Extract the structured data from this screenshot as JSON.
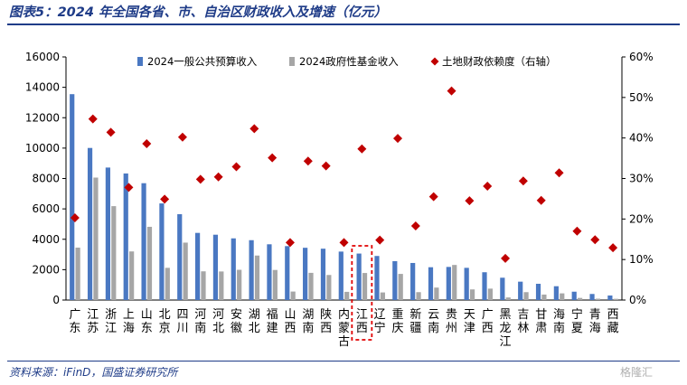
{
  "title": "图表5：2024 年全国各省、市、自治区财政收入及增速（亿元）",
  "source": "资料来源：iFinD，国盛证券研究所",
  "watermark": "格隆汇",
  "colors": {
    "title": "#1f3c88",
    "budget_bar": "#4a78c2",
    "fund_bar": "#a6a6a6",
    "ratio_marker": "#c00000",
    "highlight_box": "#e00000",
    "axis_text": "#000000"
  },
  "chart_data": {
    "type": "bar",
    "categories": [
      "广东",
      "江苏",
      "浙江",
      "上海",
      "山东",
      "北京",
      "四川",
      "河南",
      "河北",
      "安徽",
      "湖北",
      "福建",
      "山西",
      "湖南",
      "陕西",
      "内蒙古",
      "江西",
      "辽宁",
      "重庆",
      "新疆",
      "云南",
      "贵州",
      "天津",
      "广西",
      "黑龙江",
      "吉林",
      "甘肃",
      "海南",
      "宁夏",
      "青海",
      "西藏"
    ],
    "series": [
      {
        "name": "2024一般公共预算收入",
        "axis": "left",
        "kind": "bar",
        "values": [
          13550,
          10010,
          8720,
          8330,
          7690,
          6360,
          5650,
          4420,
          4300,
          4060,
          3940,
          3670,
          3550,
          3440,
          3380,
          3190,
          3060,
          2900,
          2560,
          2440,
          2160,
          2180,
          2120,
          1830,
          1470,
          1210,
          1070,
          910,
          550,
          400,
          300
        ]
      },
      {
        "name": "2024政府性基金收入",
        "axis": "left",
        "kind": "bar",
        "values": [
          3450,
          8060,
          6180,
          3200,
          4820,
          2120,
          3780,
          1890,
          1880,
          1990,
          2930,
          1980,
          560,
          1790,
          1650,
          540,
          1780,
          500,
          1720,
          520,
          820,
          2310,
          700,
          750,
          170,
          520,
          360,
          440,
          140,
          90,
          80
        ]
      },
      {
        "name": "土地财政依赖度（右轴）",
        "axis": "right",
        "kind": "marker",
        "values": [
          20.3,
          44.7,
          41.4,
          27.8,
          38.6,
          24.9,
          40.2,
          29.8,
          30.4,
          32.9,
          42.3,
          35.1,
          14.2,
          34.3,
          33.1,
          14.2,
          37.3,
          14.8,
          39.9,
          18.3,
          25.5,
          51.6,
          24.5,
          28.1,
          10.3,
          29.4,
          24.6,
          31.4,
          17.0,
          14.9,
          12.9
        ]
      }
    ],
    "ylim": [
      0,
      16000
    ],
    "yticks": [
      0,
      2000,
      4000,
      6000,
      8000,
      10000,
      12000,
      14000,
      16000
    ],
    "y2lim": [
      0,
      60
    ],
    "y2ticks": [
      "0%",
      "10%",
      "20%",
      "30%",
      "40%",
      "50%",
      "60%"
    ],
    "highlight_category": "江西",
    "legend_position": "top",
    "grid": false
  }
}
